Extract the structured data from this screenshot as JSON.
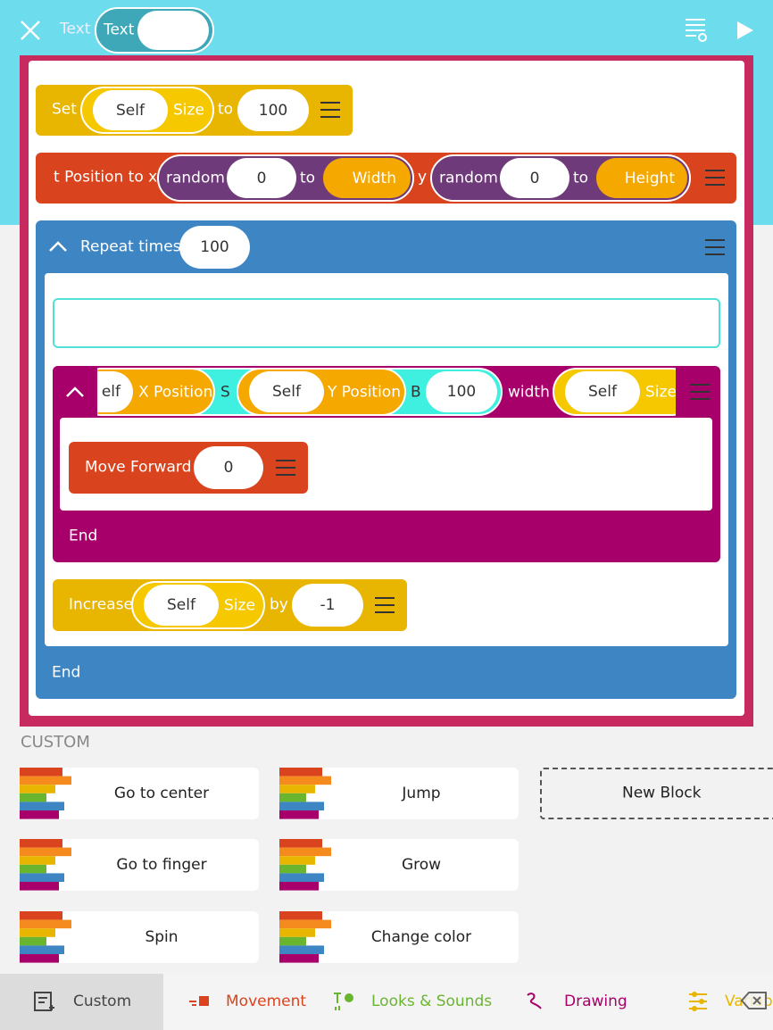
{
  "header": {
    "tab1": "Text",
    "tab2": "Text"
  },
  "blocks": {
    "set": {
      "label": "Set",
      "object": "Self",
      "property": "Size",
      "to": "to",
      "value": "100"
    },
    "position": {
      "label": "t Position to x",
      "r1": "random",
      "r1min": "0",
      "r1to": "to",
      "r1max": "Width",
      "y": "y",
      "r2": "random",
      "r2min": "0",
      "r2to": "to",
      "r2max": "Height"
    },
    "repeat": {
      "label": "Repeat times",
      "value": "100",
      "end": "End"
    },
    "draw": {
      "p1": "elf",
      "p1prop": "X Position",
      "s": "S",
      "p2": "Self",
      "p2prop": "Y Position",
      "b": "B",
      "value": "100",
      "width": "width",
      "p3": "Self",
      "p3prop": "Size",
      "end": "End"
    },
    "move": {
      "label": "Move Forward",
      "value": "0"
    },
    "increase": {
      "label": "Increase",
      "object": "Self",
      "property": "Size",
      "by": "by",
      "value": "-1"
    }
  },
  "custom": {
    "heading": "CUSTOM",
    "items": [
      "Go to center",
      "Jump",
      "Go to finger",
      "Grow",
      "Spin",
      "Change color"
    ],
    "new": "New Block"
  },
  "tabs": [
    "Custom",
    "Movement",
    "Looks & Sounds",
    "Drawing",
    "Variab"
  ]
}
